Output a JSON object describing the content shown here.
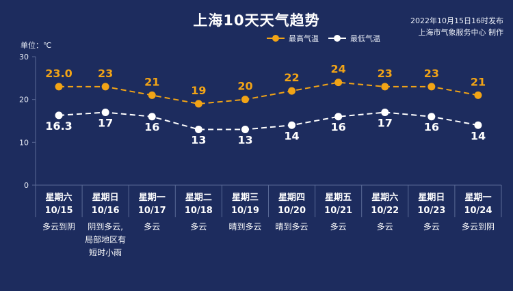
{
  "header": {
    "title": "上海10天天气趋势",
    "publish_line1": "2022年10月15日16时发布",
    "publish_line2": "上海市气象服务中心 制作",
    "unit": "单位：℃"
  },
  "colors": {
    "background": "#1d2c5e",
    "high": "#f2a416",
    "low": "#ffffff",
    "grid": "#5a6a96"
  },
  "chart_data": {
    "type": "line",
    "title": "上海10天天气趋势",
    "ylabel": "单位：℃",
    "ylim": [
      0,
      30
    ],
    "yticks": [
      "0",
      "10",
      "20",
      "30"
    ],
    "legend_position": "top-right",
    "days": [
      {
        "weekday": "星期六",
        "date": "10/15",
        "weather": [
          "多云到阴"
        ]
      },
      {
        "weekday": "星期日",
        "date": "10/16",
        "weather": [
          "阴到多云,",
          "局部地区有",
          "短时小雨"
        ]
      },
      {
        "weekday": "星期一",
        "date": "10/17",
        "weather": [
          "多云"
        ]
      },
      {
        "weekday": "星期二",
        "date": "10/18",
        "weather": [
          "多云"
        ]
      },
      {
        "weekday": "星期三",
        "date": "10/19",
        "weather": [
          "晴到多云"
        ]
      },
      {
        "weekday": "星期四",
        "date": "10/20",
        "weather": [
          "晴到多云"
        ]
      },
      {
        "weekday": "星期五",
        "date": "10/21",
        "weather": [
          "多云"
        ]
      },
      {
        "weekday": "星期六",
        "date": "10/22",
        "weather": [
          "多云"
        ]
      },
      {
        "weekday": "星期日",
        "date": "10/23",
        "weather": [
          "多云"
        ]
      },
      {
        "weekday": "星期一",
        "date": "10/24",
        "weather": [
          "多云到阴"
        ]
      }
    ],
    "series": [
      {
        "name": "最高气温",
        "values": [
          23.0,
          23,
          21,
          19,
          20,
          22,
          24,
          23,
          23,
          21
        ],
        "labels": [
          "23.0",
          "23",
          "21",
          "19",
          "20",
          "22",
          "24",
          "23",
          "23",
          "21"
        ]
      },
      {
        "name": "最低气温",
        "values": [
          16.3,
          17,
          16,
          13,
          13,
          14,
          16,
          17,
          16,
          14
        ],
        "labels": [
          "16.3",
          "17",
          "16",
          "13",
          "13",
          "14",
          "16",
          "17",
          "16",
          "14"
        ]
      }
    ]
  }
}
